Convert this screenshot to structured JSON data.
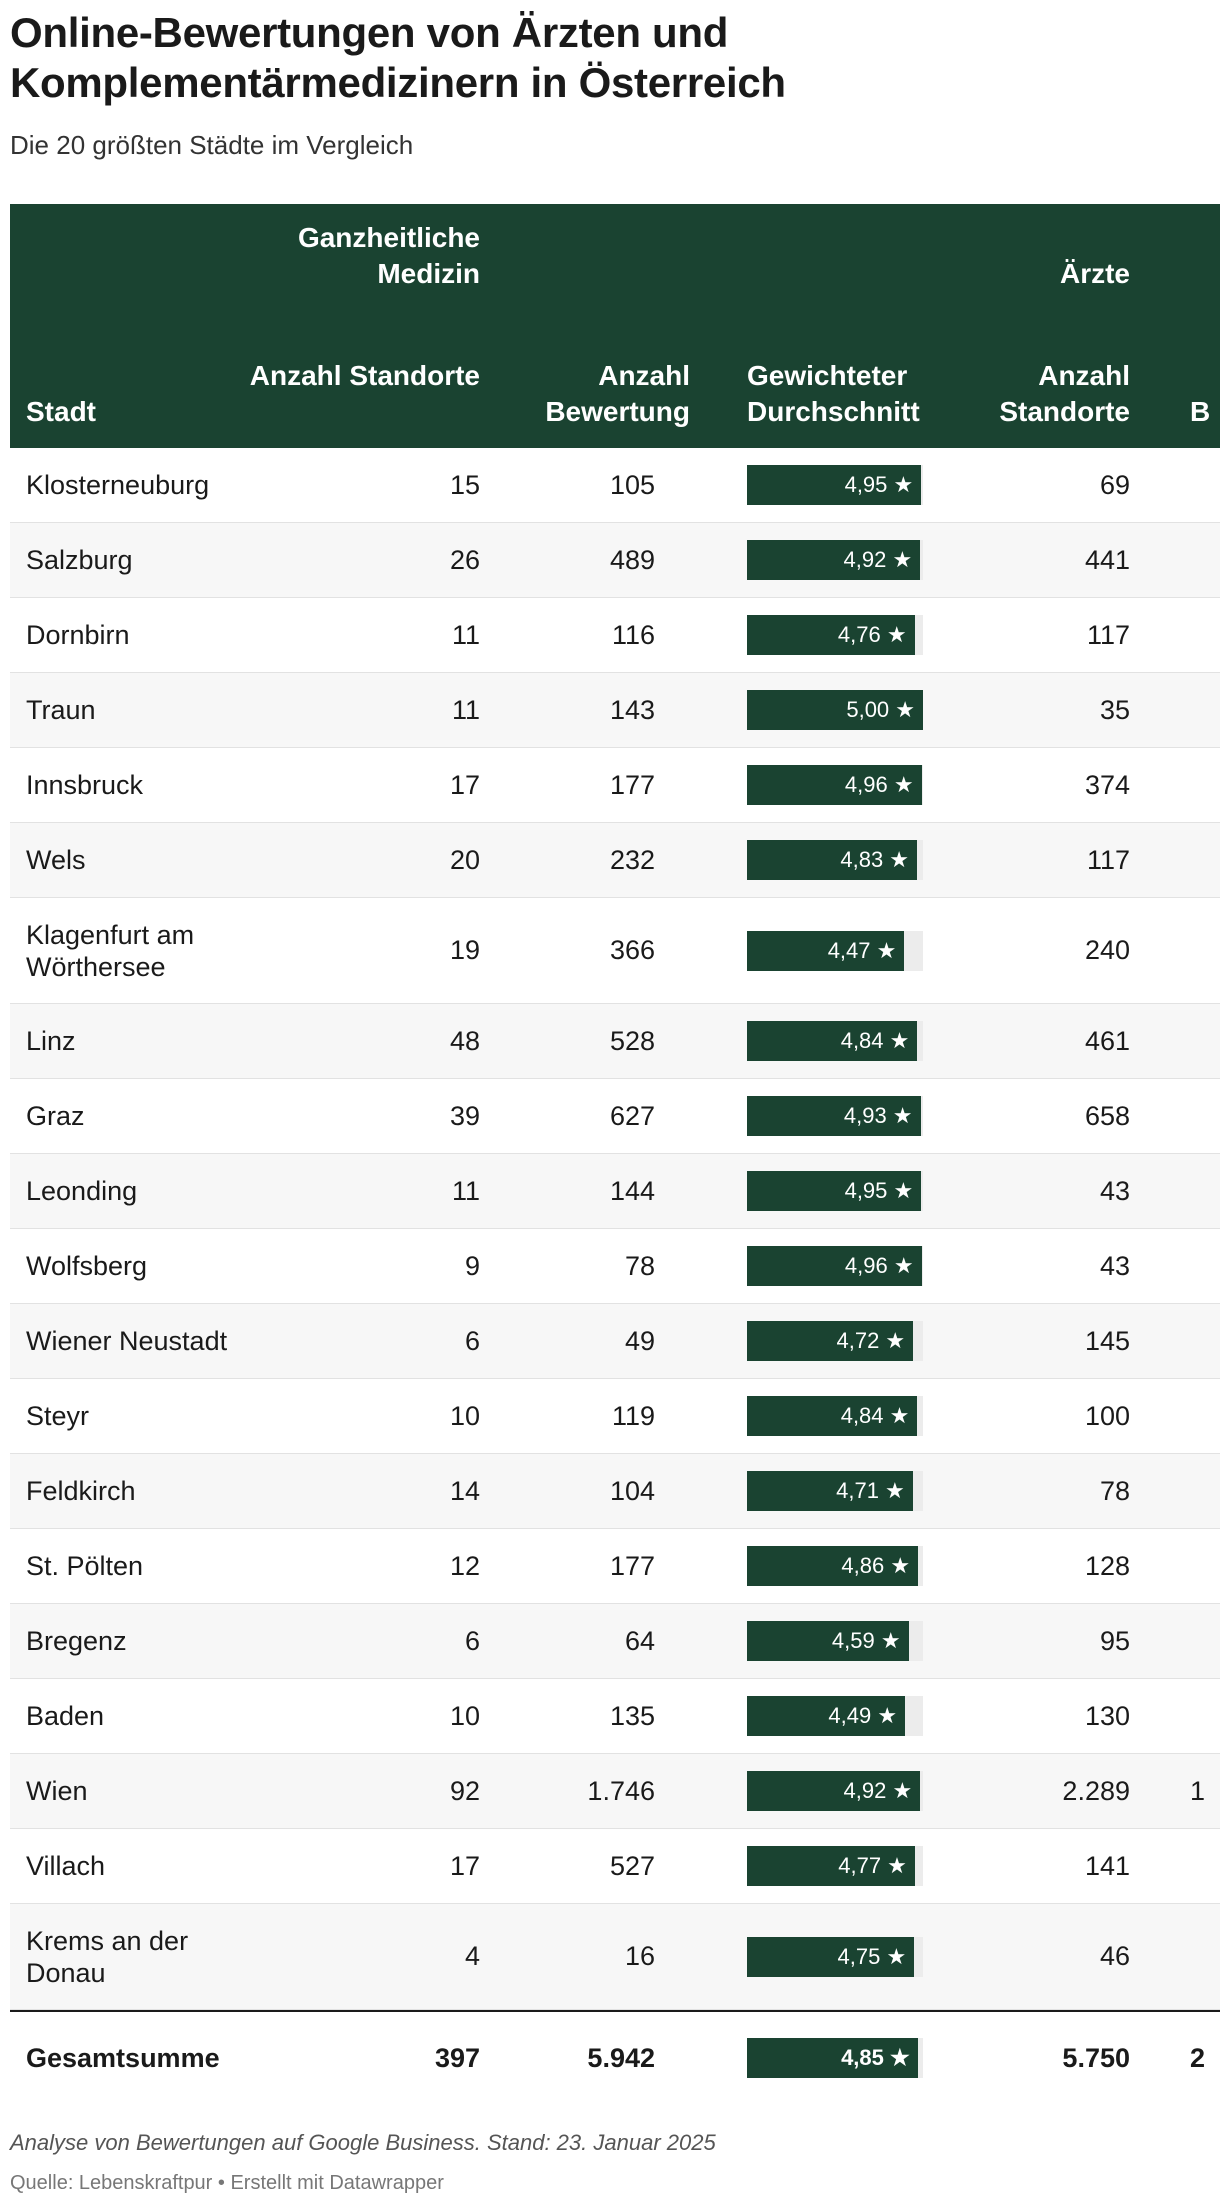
{
  "title": "Online-Bewertungen von Ärzten und Komplementärmedizinern in Österreich",
  "subtitle": "Die 20 größten Städte im Vergleich",
  "header": {
    "group1": "Ganzheitliche Medizin",
    "group2": "Ärzte",
    "col_city": "Stadt",
    "col_gm_locations": "Anzahl Standorte",
    "col_gm_reviews": "Anzahl Bewertung",
    "col_gm_avg": "Gewichteter Durchschnitt",
    "col_ae_locations": "Anzahl Standorte",
    "col_ae_reviews_partial": "B"
  },
  "rating_max": 5,
  "chart_data": {
    "type": "table",
    "columns": [
      "Stadt",
      "Anzahl Standorte",
      "Anzahl Bewertung",
      "Gewichteter Durchschnitt",
      "Anzahl Standorte"
    ],
    "rows": [
      {
        "city": "Klosterneuburg",
        "gm_locations": "15",
        "gm_reviews": "105",
        "gm_avg": "4,95 ★",
        "gm_avg_value": 4.95,
        "ae_locations": "69",
        "ae_reviews": ""
      },
      {
        "city": "Salzburg",
        "gm_locations": "26",
        "gm_reviews": "489",
        "gm_avg": "4,92 ★",
        "gm_avg_value": 4.92,
        "ae_locations": "441",
        "ae_reviews": ""
      },
      {
        "city": "Dornbirn",
        "gm_locations": "11",
        "gm_reviews": "116",
        "gm_avg": "4,76 ★",
        "gm_avg_value": 4.76,
        "ae_locations": "117",
        "ae_reviews": ""
      },
      {
        "city": "Traun",
        "gm_locations": "11",
        "gm_reviews": "143",
        "gm_avg": "5,00 ★",
        "gm_avg_value": 5.0,
        "ae_locations": "35",
        "ae_reviews": ""
      },
      {
        "city": "Innsbruck",
        "gm_locations": "17",
        "gm_reviews": "177",
        "gm_avg": "4,96 ★",
        "gm_avg_value": 4.96,
        "ae_locations": "374",
        "ae_reviews": ""
      },
      {
        "city": "Wels",
        "gm_locations": "20",
        "gm_reviews": "232",
        "gm_avg": "4,83 ★",
        "gm_avg_value": 4.83,
        "ae_locations": "117",
        "ae_reviews": ""
      },
      {
        "city": "Klagenfurt am Wörthersee",
        "gm_locations": "19",
        "gm_reviews": "366",
        "gm_avg": "4,47 ★",
        "gm_avg_value": 4.47,
        "ae_locations": "240",
        "ae_reviews": ""
      },
      {
        "city": "Linz",
        "gm_locations": "48",
        "gm_reviews": "528",
        "gm_avg": "4,84 ★",
        "gm_avg_value": 4.84,
        "ae_locations": "461",
        "ae_reviews": ""
      },
      {
        "city": "Graz",
        "gm_locations": "39",
        "gm_reviews": "627",
        "gm_avg": "4,93 ★",
        "gm_avg_value": 4.93,
        "ae_locations": "658",
        "ae_reviews": ""
      },
      {
        "city": "Leonding",
        "gm_locations": "11",
        "gm_reviews": "144",
        "gm_avg": "4,95 ★",
        "gm_avg_value": 4.95,
        "ae_locations": "43",
        "ae_reviews": ""
      },
      {
        "city": "Wolfsberg",
        "gm_locations": "9",
        "gm_reviews": "78",
        "gm_avg": "4,96 ★",
        "gm_avg_value": 4.96,
        "ae_locations": "43",
        "ae_reviews": ""
      },
      {
        "city": "Wiener Neustadt",
        "gm_locations": "6",
        "gm_reviews": "49",
        "gm_avg": "4,72 ★",
        "gm_avg_value": 4.72,
        "ae_locations": "145",
        "ae_reviews": ""
      },
      {
        "city": "Steyr",
        "gm_locations": "10",
        "gm_reviews": "119",
        "gm_avg": "4,84 ★",
        "gm_avg_value": 4.84,
        "ae_locations": "100",
        "ae_reviews": ""
      },
      {
        "city": "Feldkirch",
        "gm_locations": "14",
        "gm_reviews": "104",
        "gm_avg": "4,71 ★",
        "gm_avg_value": 4.71,
        "ae_locations": "78",
        "ae_reviews": ""
      },
      {
        "city": "St. Pölten",
        "gm_locations": "12",
        "gm_reviews": "177",
        "gm_avg": "4,86 ★",
        "gm_avg_value": 4.86,
        "ae_locations": "128",
        "ae_reviews": ""
      },
      {
        "city": "Bregenz",
        "gm_locations": "6",
        "gm_reviews": "64",
        "gm_avg": "4,59 ★",
        "gm_avg_value": 4.59,
        "ae_locations": "95",
        "ae_reviews": ""
      },
      {
        "city": "Baden",
        "gm_locations": "10",
        "gm_reviews": "135",
        "gm_avg": "4,49 ★",
        "gm_avg_value": 4.49,
        "ae_locations": "130",
        "ae_reviews": ""
      },
      {
        "city": "Wien",
        "gm_locations": "92",
        "gm_reviews": "1.746",
        "gm_avg": "4,92 ★",
        "gm_avg_value": 4.92,
        "ae_locations": "2.289",
        "ae_reviews": "1"
      },
      {
        "city": "Villach",
        "gm_locations": "17",
        "gm_reviews": "527",
        "gm_avg": "4,77 ★",
        "gm_avg_value": 4.77,
        "ae_locations": "141",
        "ae_reviews": ""
      },
      {
        "city": "Krems an der Donau",
        "gm_locations": "4",
        "gm_reviews": "16",
        "gm_avg": "4,75 ★",
        "gm_avg_value": 4.75,
        "ae_locations": "46",
        "ae_reviews": ""
      }
    ],
    "total": {
      "city": "Gesamtsumme",
      "gm_locations": "397",
      "gm_reviews": "5.942",
      "gm_avg": "4,85 ★",
      "gm_avg_value": 4.85,
      "ae_locations": "5.750",
      "ae_reviews": "2"
    }
  },
  "footer": {
    "note": "Analyse von Bewertungen auf Google Business. Stand: 23. Januar 2025",
    "source": "Quelle: Lebenskraftpur • Erstellt mit Datawrapper"
  },
  "colors": {
    "header_bg": "#1a4331",
    "bar": "#1a4331",
    "bar_track": "#ececec",
    "row_alt": "#f7f7f7"
  }
}
